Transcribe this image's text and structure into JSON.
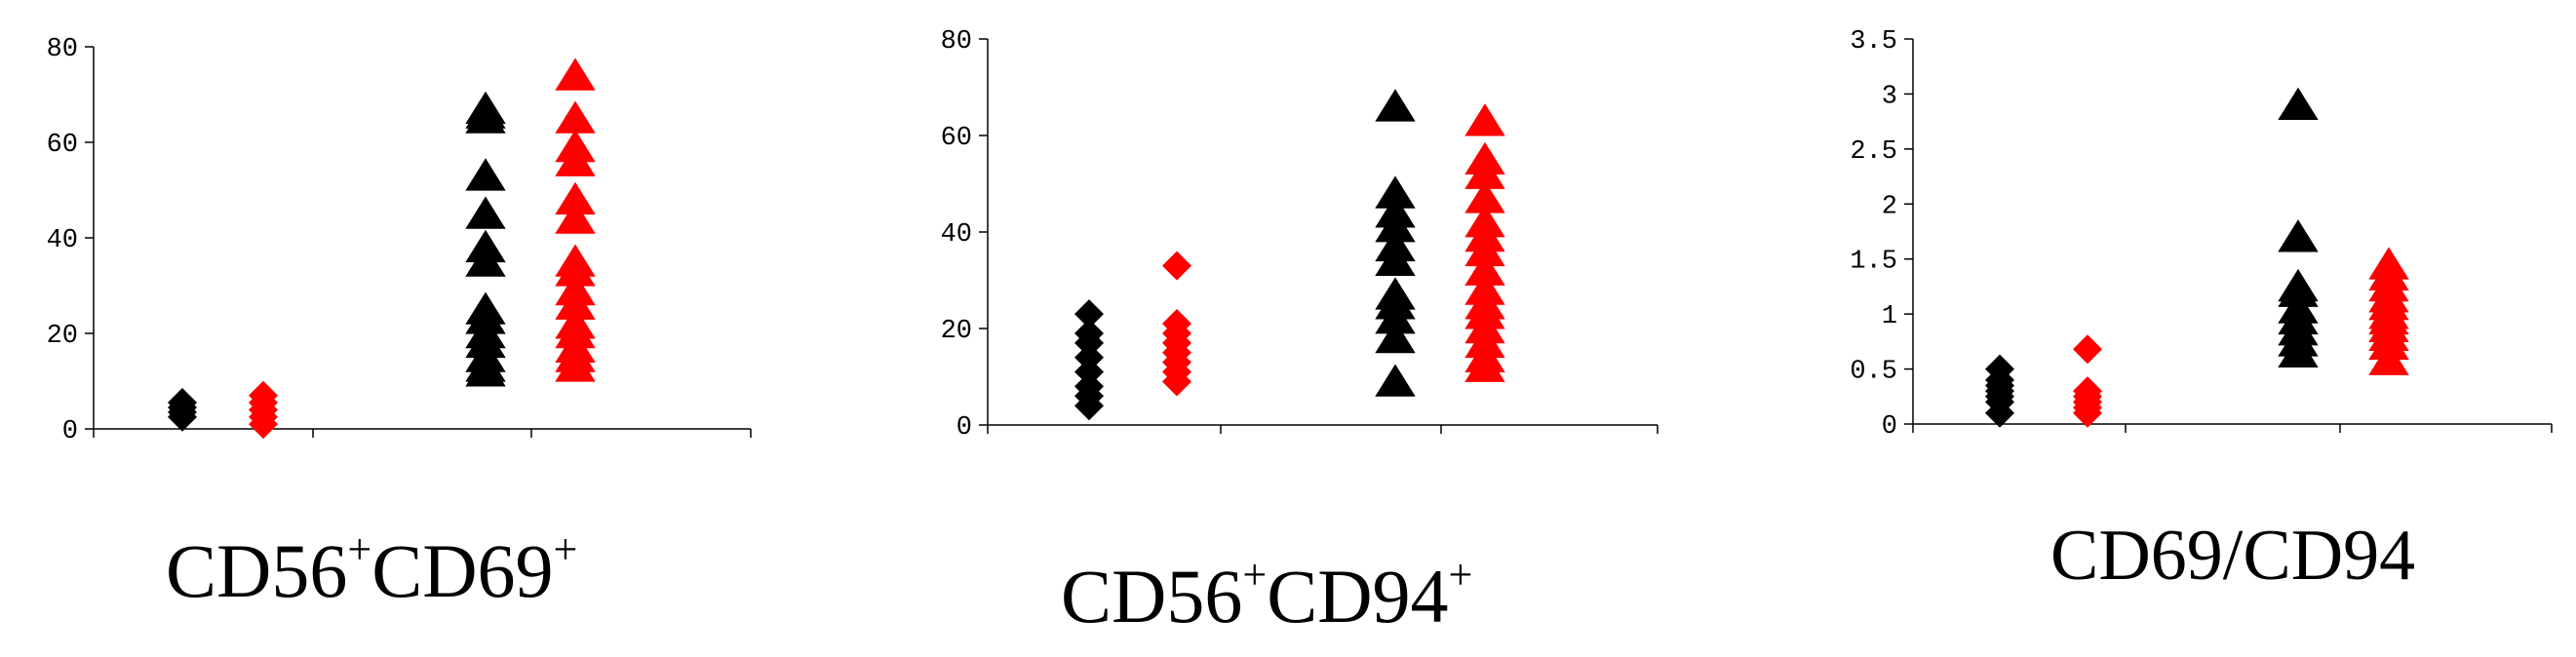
{
  "colors": {
    "black_series": "#000000",
    "red_series": "#ff0000",
    "axis": "#000000"
  },
  "chart_data": [
    {
      "type": "scatter",
      "title_main": "CD56",
      "title_sup1": "+",
      "title_mid": "CD69",
      "title_sup2": "+",
      "ylim": [
        0,
        80
      ],
      "yticks": [
        "0",
        "20",
        "40",
        "60",
        "80"
      ],
      "groups": [
        {
          "x": 1,
          "marker": "diamond",
          "color": "#000000",
          "values": [
            2.5,
            3.5,
            4.5,
            5.5
          ]
        },
        {
          "x": 2,
          "marker": "diamond",
          "color": "#ff0000",
          "values": [
            1,
            2.5,
            4,
            5.5,
            7
          ]
        },
        {
          "x": 3,
          "marker": "triangle",
          "color": "#000000",
          "values": [
            12,
            13,
            15,
            18,
            20,
            23,
            25,
            35,
            38,
            45,
            53,
            65,
            66,
            67
          ]
        },
        {
          "x": 4,
          "marker": "triangle",
          "color": "#ff0000",
          "values": [
            13,
            15,
            17,
            20,
            22,
            26,
            29,
            33,
            35,
            44,
            48,
            56,
            59,
            65,
            74
          ]
        }
      ]
    },
    {
      "type": "scatter",
      "title_main": "CD56",
      "title_sup1": "+",
      "title_mid": "CD94",
      "title_sup2": "+",
      "ylim": [
        0,
        80
      ],
      "yticks": [
        "0",
        "20",
        "40",
        "60",
        "80"
      ],
      "groups": [
        {
          "x": 1,
          "marker": "diamond",
          "color": "#000000",
          "values": [
            4,
            6,
            8,
            11,
            14,
            17,
            19,
            23
          ]
        },
        {
          "x": 2,
          "marker": "diamond",
          "color": "#ff0000",
          "values": [
            9,
            11,
            13,
            15,
            17,
            19,
            21,
            33
          ]
        },
        {
          "x": 3,
          "marker": "triangle",
          "color": "#000000",
          "values": [
            9,
            18,
            22,
            25,
            27,
            34,
            37,
            41,
            44,
            48,
            66
          ]
        },
        {
          "x": 4,
          "marker": "triangle",
          "color": "#ff0000",
          "values": [
            12,
            14,
            17,
            20,
            23,
            25,
            28,
            32,
            36,
            39,
            42,
            47,
            52,
            55,
            63
          ]
        }
      ]
    },
    {
      "type": "scatter",
      "title_main": "CD69/CD94",
      "title_sup1": "",
      "title_mid": "",
      "title_sup2": "",
      "ylim": [
        0,
        3.5
      ],
      "yticks": [
        "0",
        "0.5",
        "1",
        "1.5",
        "2",
        "2.5",
        "3",
        "3.5"
      ],
      "groups": [
        {
          "x": 1,
          "marker": "diamond",
          "color": "#000000",
          "values": [
            0.1,
            0.2,
            0.25,
            0.3,
            0.35,
            0.4,
            0.5
          ]
        },
        {
          "x": 2,
          "marker": "diamond",
          "color": "#ff0000",
          "values": [
            0.1,
            0.15,
            0.2,
            0.25,
            0.3,
            0.68
          ]
        },
        {
          "x": 3,
          "marker": "triangle",
          "color": "#000000",
          "values": [
            0.65,
            0.75,
            0.85,
            0.95,
            1.05,
            1.2,
            1.25,
            1.7,
            2.9
          ]
        },
        {
          "x": 4,
          "marker": "triangle",
          "color": "#ff0000",
          "values": [
            0.58,
            0.72,
            0.8,
            0.88,
            0.95,
            1.0,
            1.08,
            1.15,
            1.25,
            1.35,
            1.45
          ]
        }
      ]
    }
  ]
}
